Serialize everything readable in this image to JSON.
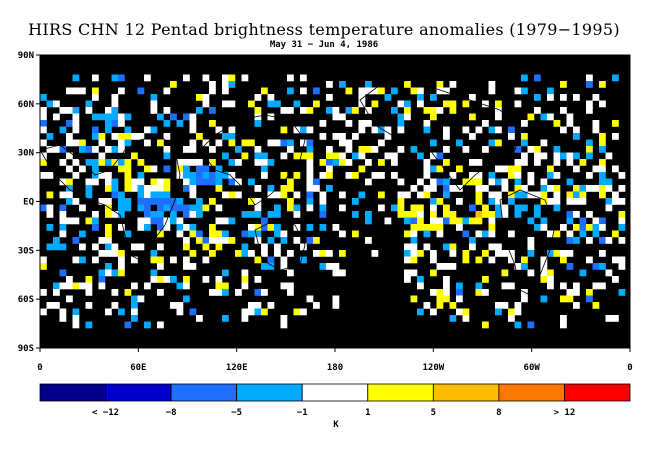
{
  "title": "HIRS CHN 12 Pentad brightness temperature anomalies (1979−1995)",
  "subtitle": "May 31 − Jun 4, 1986",
  "map": {
    "y_ticks": [
      "90N",
      "60N",
      "30N",
      "EQ",
      "30S",
      "60S",
      "90S"
    ],
    "x_ticks": [
      "0",
      "60E",
      "120E",
      "180",
      "120W",
      "60W",
      "0"
    ]
  },
  "colorbar": {
    "unit": "K",
    "labels": [
      "< −12",
      "−8",
      "−5",
      "−1",
      "1",
      "5",
      "8",
      "> 12"
    ],
    "colors": [
      "#00008b",
      "#0000cd",
      "#1e6fff",
      "#00aaff",
      "#ffffff",
      "#ffff00",
      "#ffbb00",
      "#ff7700",
      "#ff0000"
    ],
    "background_color": "#000000"
  }
}
